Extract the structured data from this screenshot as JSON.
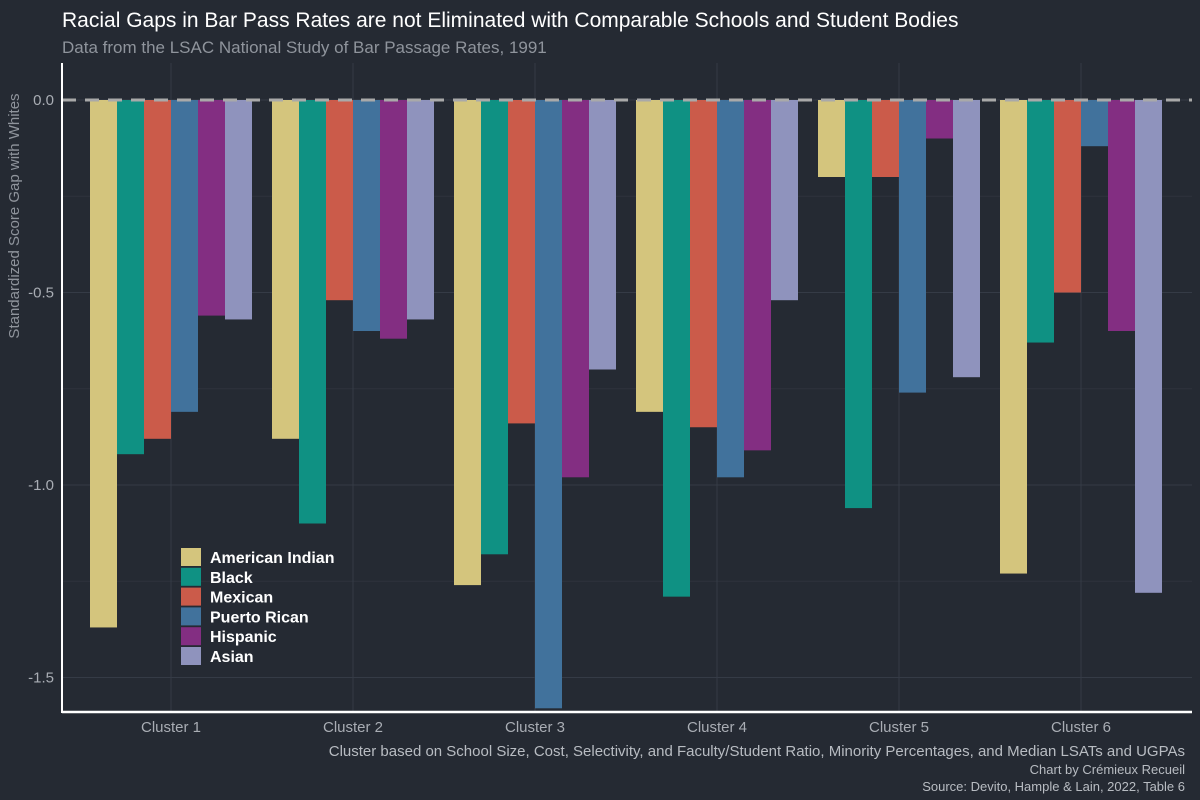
{
  "colors": {
    "background": "#252a33",
    "grid": "#353b46",
    "axis": "#ffffff",
    "zero_line": "#a9a9a9",
    "title": "#ffffff",
    "subtitle": "#8f949c",
    "muted_text": "#a9adb4",
    "caption": "#b8bcc2",
    "legend_text": "#ffffff"
  },
  "chart_data": {
    "type": "bar",
    "title": "Racial Gaps in Bar Pass Rates are not Eliminated with Comparable Schools and Student Bodies",
    "subtitle": "Data from the LSAC National Study of Bar Passage Rates, 1991",
    "xlabel": "Cluster based on School Size, Cost, Selectivity, and Faculty/Student Ratio, Minority Percentages, and Median LSATs and UGPAs",
    "ylabel": "Standardized Score Gap with Whites",
    "caption_lines": [
      "Chart by Crémieux Recueil",
      "Source: Devito, Hample & Lain, 2022, Table 6"
    ],
    "categories": [
      "Cluster 1",
      "Cluster 2",
      "Cluster 3",
      "Cluster 4",
      "Cluster 5",
      "Cluster 6"
    ],
    "ylim": [
      -1.58,
      0.1
    ],
    "yticks": [
      0.0,
      -0.5,
      -1.0,
      -1.5
    ],
    "ytick_labels": [
      "0.0",
      "-0.5",
      "-1.0",
      "-1.5"
    ],
    "grid": true,
    "reference_line": 0,
    "legend_position": "bottom-left",
    "series": [
      {
        "name": "American Indian",
        "color": "#d4c57d",
        "values": [
          -1.37,
          -0.88,
          -1.26,
          -0.81,
          -0.2,
          -1.23
        ]
      },
      {
        "name": "Black",
        "color": "#0f9183",
        "values": [
          -0.92,
          -1.1,
          -1.18,
          -1.29,
          -1.06,
          -0.63
        ]
      },
      {
        "name": "Mexican",
        "color": "#cb5b4a",
        "values": [
          -0.88,
          -0.52,
          -0.84,
          -0.85,
          -0.2,
          -0.5
        ]
      },
      {
        "name": "Puerto Rican",
        "color": "#41729c",
        "values": [
          -0.81,
          -0.6,
          -1.58,
          -0.98,
          -0.76,
          -0.12
        ]
      },
      {
        "name": "Hispanic",
        "color": "#832e82",
        "values": [
          -0.56,
          -0.62,
          -0.98,
          -0.91,
          -0.1,
          -0.6
        ]
      },
      {
        "name": "Asian",
        "color": "#8f93bd",
        "values": [
          -0.57,
          -0.57,
          -0.7,
          -0.52,
          -0.72,
          -1.28
        ]
      }
    ]
  }
}
